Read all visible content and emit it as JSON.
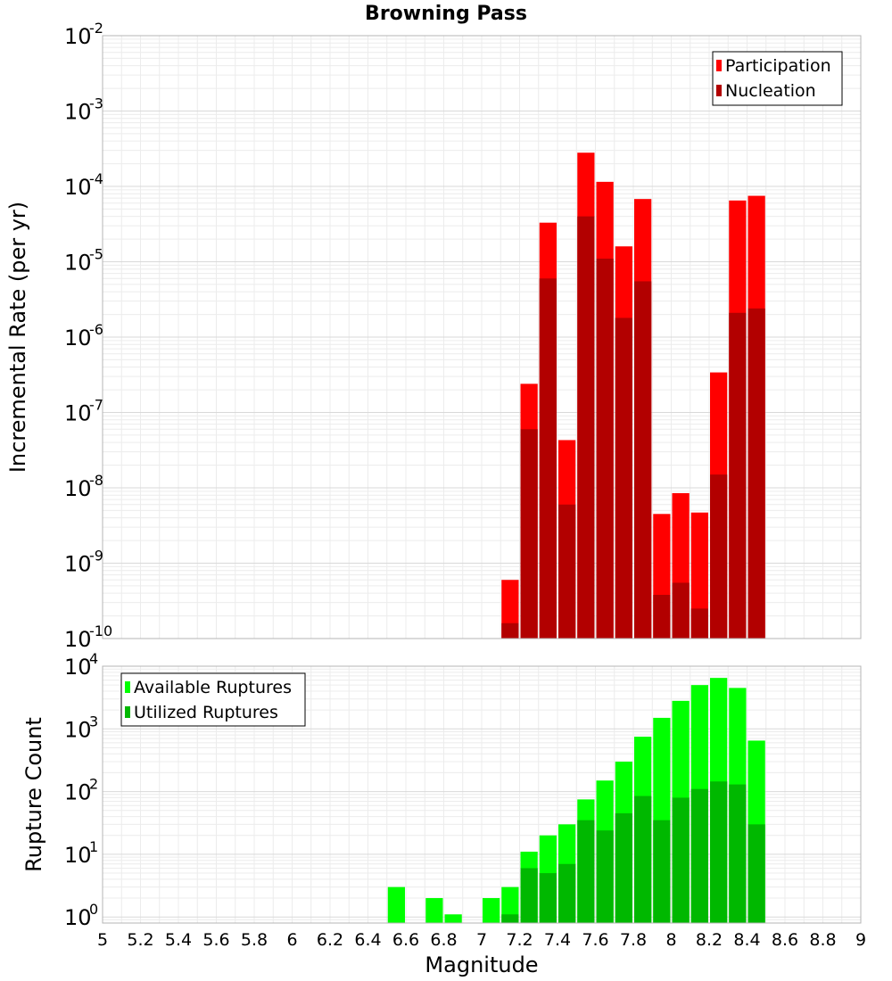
{
  "chart_data": [
    {
      "type": "bar",
      "stacked_overlay": true,
      "title": "Browning Pass",
      "xlabel": "",
      "ylabel": "Incremental Rate (per yr)",
      "yscale": "log",
      "ylim": [
        1e-10,
        0.01
      ],
      "xlim": [
        5,
        9
      ],
      "bin_width": 0.1,
      "grid": true,
      "legend_position": "top-right",
      "y_ticks": [
        {
          "base": "10",
          "exp": "-10"
        },
        {
          "base": "10",
          "exp": "-9"
        },
        {
          "base": "10",
          "exp": "-8"
        },
        {
          "base": "10",
          "exp": "-7"
        },
        {
          "base": "10",
          "exp": "-6"
        },
        {
          "base": "10",
          "exp": "-5"
        },
        {
          "base": "10",
          "exp": "-4"
        },
        {
          "base": "10",
          "exp": "-3"
        },
        {
          "base": "10",
          "exp": "-2"
        }
      ],
      "x": [
        7.15,
        7.25,
        7.35,
        7.45,
        7.55,
        7.65,
        7.75,
        7.85,
        7.95,
        8.05,
        8.15,
        8.25,
        8.35,
        8.45
      ],
      "series": [
        {
          "name": "Participation",
          "color": "#ff0000",
          "values": [
            6e-10,
            2.4e-07,
            3.3e-05,
            4.3e-08,
            0.00028,
            0.000115,
            1.6e-05,
            6.8e-05,
            4.5e-09,
            8.5e-09,
            4.7e-09,
            3.4e-07,
            6.5e-05,
            7.5e-05
          ]
        },
        {
          "name": "Nucleation",
          "color": "#b20000",
          "values": [
            1.6e-10,
            6e-08,
            6e-06,
            6e-09,
            4e-05,
            1.1e-05,
            1.8e-06,
            5.5e-06,
            3.8e-10,
            5.5e-10,
            2.5e-10,
            1.5e-08,
            2.1e-06,
            2.4e-06
          ]
        }
      ]
    },
    {
      "type": "bar",
      "stacked_overlay": true,
      "title": "",
      "xlabel": "Magnitude",
      "ylabel": "Rupture Count",
      "yscale": "log",
      "ylim": [
        0.8,
        10000
      ],
      "xlim": [
        5,
        9
      ],
      "bin_width": 0.1,
      "grid": true,
      "legend_position": "top-left",
      "y_ticks": [
        {
          "base": "10",
          "exp": "0"
        },
        {
          "base": "10",
          "exp": "1"
        },
        {
          "base": "10",
          "exp": "2"
        },
        {
          "base": "10",
          "exp": "3"
        },
        {
          "base": "10",
          "exp": "4"
        }
      ],
      "x_tick_labels": [
        "5",
        "5.2",
        "5.4",
        "5.6",
        "5.8",
        "6",
        "6.2",
        "6.4",
        "6.6",
        "6.8",
        "7",
        "7.2",
        "7.4",
        "7.6",
        "7.8",
        "8",
        "8.2",
        "8.4",
        "8.6",
        "8.8",
        "9"
      ],
      "x": [
        6.55,
        6.75,
        6.85,
        7.05,
        7.15,
        7.25,
        7.35,
        7.45,
        7.55,
        7.65,
        7.75,
        7.85,
        7.95,
        8.05,
        8.15,
        8.25,
        8.35,
        8.45
      ],
      "series": [
        {
          "name": "Available Ruptures",
          "color": "#00ff00",
          "values": [
            3,
            2,
            1.1,
            2,
            3,
            11,
            20,
            30,
            75,
            150,
            300,
            750,
            1500,
            2800,
            5000,
            6500,
            4500,
            650
          ]
        },
        {
          "name": "Utilized Ruptures",
          "color": "#00b800",
          "values": [
            0,
            0,
            0,
            0,
            1.1,
            6,
            5,
            7,
            35,
            24,
            45,
            85,
            35,
            80,
            110,
            145,
            130,
            30
          ]
        }
      ]
    }
  ]
}
